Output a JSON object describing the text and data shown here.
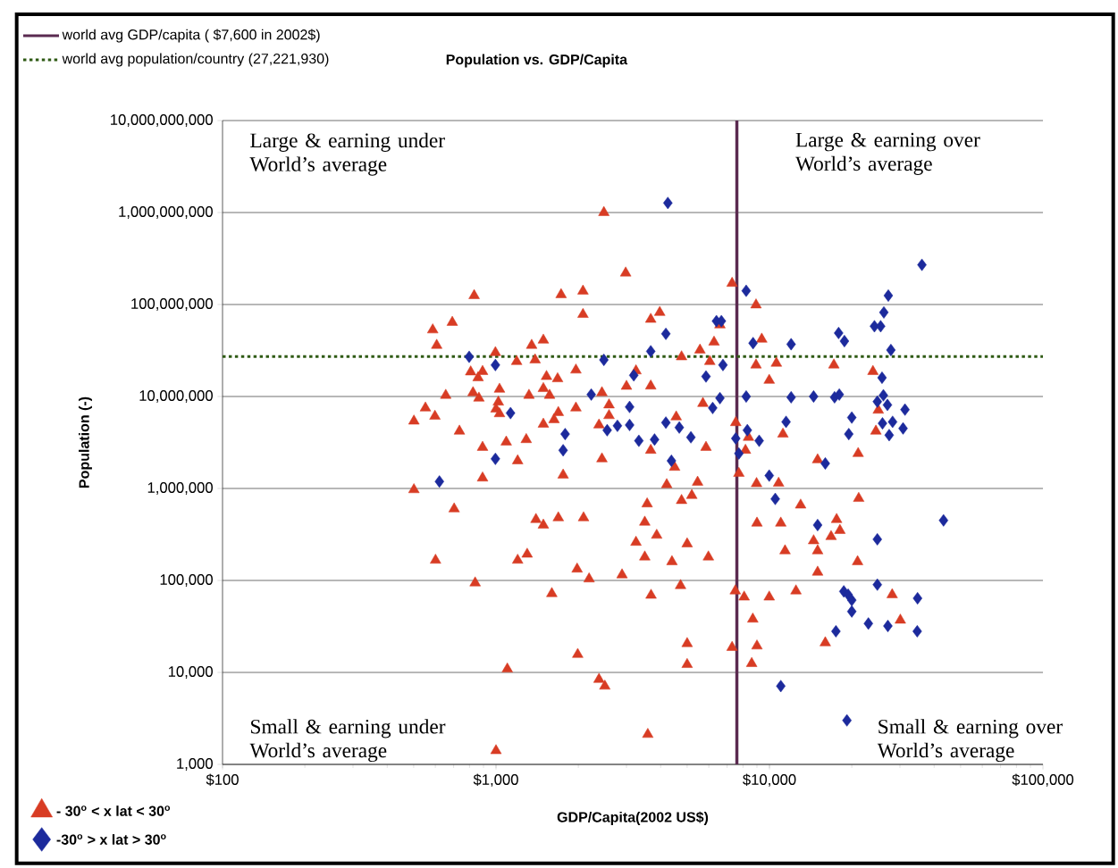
{
  "chart_data": {
    "type": "scatter",
    "title": "Population vs. GDP/Capita",
    "xlabel": "GDP/Capita(2002 US$)",
    "ylabel": "Population (-)",
    "log": "xy",
    "grid": "y",
    "legend": "left",
    "xlim": [
      100,
      100000
    ],
    "ylim": [
      1000,
      10000000000
    ],
    "xticks": [
      {
        "value": 100,
        "label": "$100"
      },
      {
        "value": 1000,
        "label": "$1,000"
      },
      {
        "value": 10000,
        "label": "$10,000"
      },
      {
        "value": 100000,
        "label": "$100,000"
      }
    ],
    "yticks": [
      {
        "value": 1000,
        "label": "1,000"
      },
      {
        "value": 10000,
        "label": "10,000"
      },
      {
        "value": 100000,
        "label": "100,000"
      },
      {
        "value": 1000000,
        "label": "1,000,000"
      },
      {
        "value": 10000000,
        "label": "10,000,000"
      },
      {
        "value": 100000000,
        "label": "100,000,000"
      },
      {
        "value": 1000000000,
        "label": "1,000,000,000"
      },
      {
        "value": 10000000000,
        "label": "10,000,000,000"
      }
    ],
    "ref_lines": [
      {
        "axis": "x",
        "value": 7600,
        "label": "world avg GDP/capita ( $7,600 in 2002$)",
        "color": "#5a2a50",
        "line_style": "solid"
      },
      {
        "axis": "y",
        "value": 27221930,
        "label": "world avg population/country (27,221,930)",
        "color": "#2f5a14",
        "line_style": "dotted"
      }
    ],
    "annotations": [
      "Large & earning under World’s average",
      "Large & earning over World’s average",
      "Small & earning under World’s average",
      "Small & earning over World’s average"
    ],
    "series": [
      {
        "name": "- 30$^{o}$ < x lat < 30$^{o}$",
        "color": "#d83c24",
        "marker": "triangle",
        "x": [
          2480,
          2980,
          7300,
          832,
          1730,
          2080,
          2080,
          3970,
          3680,
          587,
          692,
          607,
          995,
          1350,
          1490,
          1190,
          1390,
          6270,
          5570,
          4770,
          6050,
          6590,
          808,
          893,
          860,
          1530,
          1680,
          1960,
          3250,
          3000,
          3680,
          2440,
          1490,
          1030,
          1320,
          1570,
          824,
          866,
          655,
          1020,
          1000,
          1030,
          552,
          598,
          501,
          735,
          1690,
          1630,
          1490,
          1960,
          2590,
          2590,
          2380,
          4560,
          5710,
          7530,
          893,
          1090,
          1290,
          1200,
          3680,
          2440,
          5860,
          4500,
          893,
          1760,
          4210,
          5460,
          7730,
          501,
          8930,
          9370,
          8930,
          10600,
          17200,
          23900,
          9980,
          25000,
          24500,
          8380,
          11200,
          8170,
          21100,
          15000,
          8970,
          10800,
          4770,
          5200,
          3570,
          703,
          1400,
          1490,
          1690,
          2090,
          3500,
          3870,
          3250,
          5000,
          3500,
          4400,
          5980,
          601,
          1200,
          1300,
          1980,
          2190,
          2890,
          839,
          1600,
          3690,
          4730,
          7500,
          8080,
          5000,
          5000,
          7300,
          1990,
          1100,
          2380,
          2500,
          3590,
          1000,
          21200,
          13000,
          9000,
          11000,
          17600,
          18100,
          16800,
          14500,
          11400,
          15000,
          21000,
          15000,
          9980,
          12500,
          28100,
          30100,
          8690,
          16000,
          9000,
          8610
        ],
        "values": [
          1000000000.0,
          220000000.0,
          170000000.0,
          125000000.0,
          128000000.0,
          140000000.0,
          78000000.0,
          82000000.0,
          69000000.0,
          53000000.0,
          64000000.0,
          36000000.0,
          30000000.0,
          36000000.0,
          41000000.0,
          24000000.0,
          25000000.0,
          39000000.0,
          32000000.0,
          27000000.0,
          24000000.0,
          60000000.0,
          18500000.0,
          18700000.0,
          16000000.0,
          16500000.0,
          15600000.0,
          19400000.0,
          19000000.0,
          12900000.0,
          13000000.0,
          11000000.0,
          12200000.0,
          12000000.0,
          10300000.0,
          10300000.0,
          11000000.0,
          9600000.0,
          10300000.0,
          8700000.0,
          7300000.0,
          6500000.0,
          7500000.0,
          6100000.0,
          5400000.0,
          4200000.0,
          6700000.0,
          5600000.0,
          5000000.0,
          7500000.0,
          8100000.0,
          6200000.0,
          4900000.0,
          6000000.0,
          8400000.0,
          5200000.0,
          2800000.0,
          3200000.0,
          3400000.0,
          2000000.0,
          2600000.0,
          2100000.0,
          2800000.0,
          1700000.0,
          1300000.0,
          1400000.0,
          1100000.0,
          1170000.0,
          1460000.0,
          970000.0,
          99000000.0,
          42000000.0,
          22000000.0,
          23000000.0,
          22000000.0,
          18700000.0,
          15000000.0,
          7100000.0,
          4200000.0,
          3600000.0,
          3900000.0,
          2600000.0,
          2400000.0,
          2050000.0,
          1130000.0,
          1140000.0,
          740000.0,
          840000.0,
          680000.0,
          600000.0,
          460000.0,
          400000.0,
          480000.0,
          480000.0,
          430000.0,
          310000.0,
          260000.0,
          250000.0,
          180000.0,
          160000.0,
          180000.0,
          166000.0,
          166000.0,
          193000.0,
          133000.0,
          104000.0,
          115000.0,
          94000.0,
          72000.0,
          69000.0,
          88000.0,
          77000.0,
          66000.0,
          20600.0,
          12200.0,
          18700.0,
          15700.0,
          10900.0,
          8400,
          7100,
          2120,
          1410,
          780000.0,
          660000.0,
          420000.0,
          420000.0,
          460000.0,
          350000.0,
          300000.0,
          270000.0,
          210000.0,
          210000.0,
          160000.0,
          123000.0,
          66000.0,
          77000.0,
          70000.0,
          37000.0,
          38000.0,
          21000.0,
          19400.0,
          12500.0
        ]
      },
      {
        "name": "-30$^{o}$ > x lat > 30$^{o}$",
        "color": "#1c2a9c",
        "marker": "diamond",
        "x": [
          4250,
          6400,
          6670,
          4180,
          3680,
          798,
          995,
          2480,
          6760,
          3190,
          5860,
          2230,
          6590,
          3080,
          6200,
          1130,
          2550,
          2780,
          3080,
          4180,
          4680,
          1790,
          3330,
          3800,
          5160,
          7530,
          1760,
          995,
          4380,
          7730,
          621,
          36100,
          8220,
          27200,
          26200,
          24200,
          25500,
          17900,
          18800,
          8710,
          12000,
          27800,
          25800,
          8220,
          12000,
          14500,
          17300,
          18000,
          26100,
          24800,
          27000,
          31300,
          20000,
          25900,
          28200,
          30800,
          27400,
          19500,
          11500,
          8300,
          9170,
          16000,
          9980,
          10500,
          43300,
          15000,
          24800,
          24800,
          18700,
          19400,
          20000,
          20000,
          34800,
          23000,
          27100,
          17500,
          34700,
          11000,
          19200
        ],
        "values": [
          1270000000.0,
          66000000.0,
          66000000.0,
          48000000.0,
          31000000.0,
          27000000.0,
          22000000.0,
          25000000.0,
          22000000.0,
          17000000.0,
          16500000.0,
          10500000.0,
          9600000.0,
          7700000.0,
          7500000.0,
          6600000.0,
          4300000.0,
          4800000.0,
          4900000.0,
          5200000.0,
          4600000.0,
          3900000.0,
          3300000.0,
          3400000.0,
          3600000.0,
          3500000.0,
          2600000.0,
          2100000.0,
          2000000.0,
          2400000.0,
          1190000.0,
          270000000.0,
          141000000.0,
          125000000.0,
          82000000.0,
          58000000.0,
          58000000.0,
          49000000.0,
          40000000.0,
          38000000.0,
          37000000.0,
          32000000.0,
          16000000.0,
          10000000.0,
          9800000.0,
          10000000.0,
          9800000.0,
          10500000.0,
          10300000.0,
          8800000.0,
          8100000.0,
          7200000.0,
          5900000.0,
          5100000.0,
          5300000.0,
          4500000.0,
          3800000.0,
          3900000.0,
          5300000.0,
          4300000.0,
          3300000.0,
          1870000.0,
          1380000.0,
          770000.0,
          450000.0,
          400000.0,
          280000.0,
          90000.0,
          76000.0,
          70000.0,
          61000.0,
          46000.0,
          64000.0,
          34000.0,
          32000.0,
          28000.0,
          28000.0,
          7100,
          3010
        ]
      }
    ]
  }
}
